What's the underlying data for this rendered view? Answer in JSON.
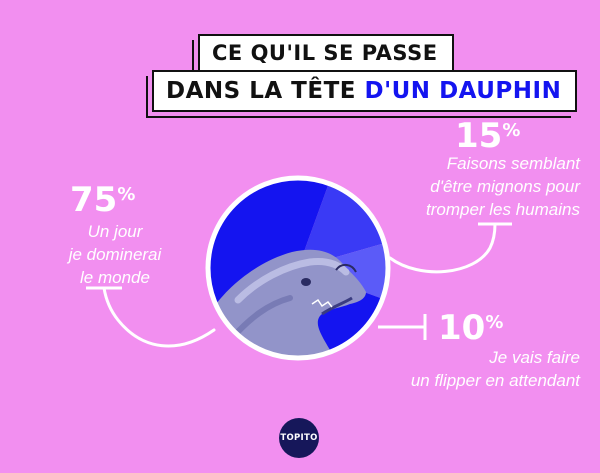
{
  "title": {
    "line1": "CE QU'IL SE PASSE",
    "line2_part1": "DANS LA TÊTE ",
    "line2_accent": "D'UN DAUPHIN"
  },
  "colors": {
    "background": "#f28ff0",
    "accent": "#1414f0",
    "white": "#ffffff"
  },
  "chart_data": {
    "type": "pie",
    "categories": [
      "Un jour je dominerai le monde",
      "Faisons semblant d'être mignons pour tromper les humains",
      "Je vais faire un flipper en attendant"
    ],
    "values": [
      75,
      15,
      10
    ],
    "labels": [
      {
        "pct_num": "75",
        "pct_sign": "%",
        "lines": [
          "Un jour",
          "je dominerai",
          "le monde"
        ]
      },
      {
        "pct_num": "15",
        "pct_sign": "%",
        "lines": [
          "Faisons semblant",
          "d'être mignons pour",
          "tromper les humains"
        ]
      },
      {
        "pct_num": "10",
        "pct_sign": "%",
        "lines": [
          "Je vais faire",
          "un flipper en attendant"
        ]
      }
    ],
    "slice_colors": [
      "#1414f0",
      "#3a3af5",
      "#5b5bf8"
    ],
    "center_image": "dolphin-head"
  },
  "logo": {
    "text": "TOPITO"
  }
}
